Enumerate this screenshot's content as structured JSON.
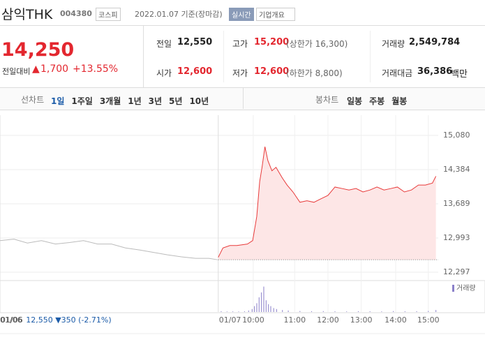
{
  "header": {
    "name": "삼익THK",
    "code": "004380",
    "market": "코스피",
    "date": "2022.01.07 기준(장마감)",
    "realtime": "실시간",
    "overview": "기업개요"
  },
  "price": {
    "current": "14,250",
    "change_label": "전일대비",
    "change": "1,700",
    "rate": "+13.55%"
  },
  "stats": [
    {
      "label": "전일",
      "value": "12,550"
    },
    {
      "label": "고가",
      "value": "15,200",
      "note": "(상한가 16,300)"
    },
    {
      "label": "거래량",
      "value": "2,549,784"
    },
    {
      "label": "시가",
      "value": "12,600"
    },
    {
      "label": "저가",
      "value": "12,600",
      "note": "(하한가 8,800)"
    },
    {
      "label": "거래대금",
      "value": "36,386",
      "unit": "백만"
    }
  ],
  "tabs": {
    "line_label": "선차트",
    "line": [
      "1일",
      "1주일",
      "3개월",
      "1년",
      "3년",
      "5년",
      "10년"
    ],
    "candle_label": "봉차트",
    "candle": [
      "일봉",
      "주봉",
      "월봉"
    ]
  },
  "chart_data": {
    "type": "line",
    "xlim": [
      -374,
      377
    ],
    "ylim": [
      12155,
      15492
    ],
    "yticks": [
      {
        "value": 12297,
        "label": "12,297"
      },
      {
        "value": 12993,
        "label": "12,993"
      },
      {
        "value": 13689,
        "label": "13,689"
      },
      {
        "value": 14384,
        "label": "14,384"
      },
      {
        "value": 15080,
        "label": "15,080"
      }
    ],
    "xticks": [
      {
        "value": -374,
        "label": "01/06"
      },
      {
        "value": 0,
        "label": "01/07"
      },
      {
        "value": 60,
        "label": "10:00"
      },
      {
        "value": 131,
        "label": "11:00"
      },
      {
        "value": 188,
        "label": "12:00"
      },
      {
        "value": 245,
        "label": "13:00"
      },
      {
        "value": 304,
        "label": "14:00"
      },
      {
        "value": 360,
        "label": "15:00"
      }
    ],
    "reference": 12550,
    "series": [
      {
        "color": "#bbbbbb",
        "x": [
          -374,
          -350,
          -327,
          -303,
          -279,
          -255,
          -231,
          -207,
          -183,
          -159,
          -135,
          -111,
          -87,
          -63,
          -39,
          -16,
          -1
        ],
        "values": [
          12940,
          12970,
          12890,
          12940,
          12870,
          12900,
          12940,
          12870,
          12870,
          12790,
          12750,
          12700,
          12650,
          12610,
          12580,
          12580,
          12550
        ]
      },
      {
        "color": "#e83a3a",
        "fill": "#fde6e6",
        "x": [
          0,
          8,
          20,
          32,
          50,
          59,
          66,
          71,
          75,
          80,
          85,
          92,
          99,
          110,
          118,
          128,
          140,
          152,
          164,
          176,
          188,
          200,
          212,
          224,
          236,
          248,
          260,
          272,
          284,
          296,
          307,
          319,
          331,
          343,
          355,
          367,
          373
        ],
        "values": [
          12600,
          12790,
          12840,
          12840,
          12870,
          12940,
          13430,
          14140,
          14430,
          14850,
          14570,
          14360,
          14430,
          14210,
          14070,
          13930,
          13720,
          13750,
          13720,
          13790,
          13860,
          14030,
          14000,
          13970,
          14000,
          13930,
          13970,
          14030,
          13970,
          14000,
          14030,
          13930,
          13970,
          14070,
          14070,
          14110,
          14250
        ]
      }
    ],
    "volume": {
      "name": "거래량",
      "color": "#8a7fc9",
      "ylim": [
        0,
        300000
      ],
      "x": [
        5,
        15,
        25,
        35,
        45,
        52,
        58,
        62,
        66,
        70,
        74,
        78,
        82,
        86,
        90,
        95,
        100,
        110,
        120,
        140,
        160,
        180,
        200,
        220,
        240,
        260,
        280,
        300,
        320,
        340,
        360,
        373
      ],
      "values": [
        8000,
        5000,
        6000,
        5000,
        7000,
        15000,
        30000,
        60000,
        90000,
        150000,
        200000,
        260000,
        120000,
        80000,
        60000,
        40000,
        30000,
        20000,
        15000,
        10000,
        8000,
        9000,
        7000,
        6000,
        8000,
        7000,
        6000,
        9000,
        7000,
        8000,
        10000,
        20000
      ]
    },
    "info": {
      "date": "01/06",
      "price": "12,550",
      "change": "▼350",
      "rate": "(-2.71%)"
    }
  }
}
